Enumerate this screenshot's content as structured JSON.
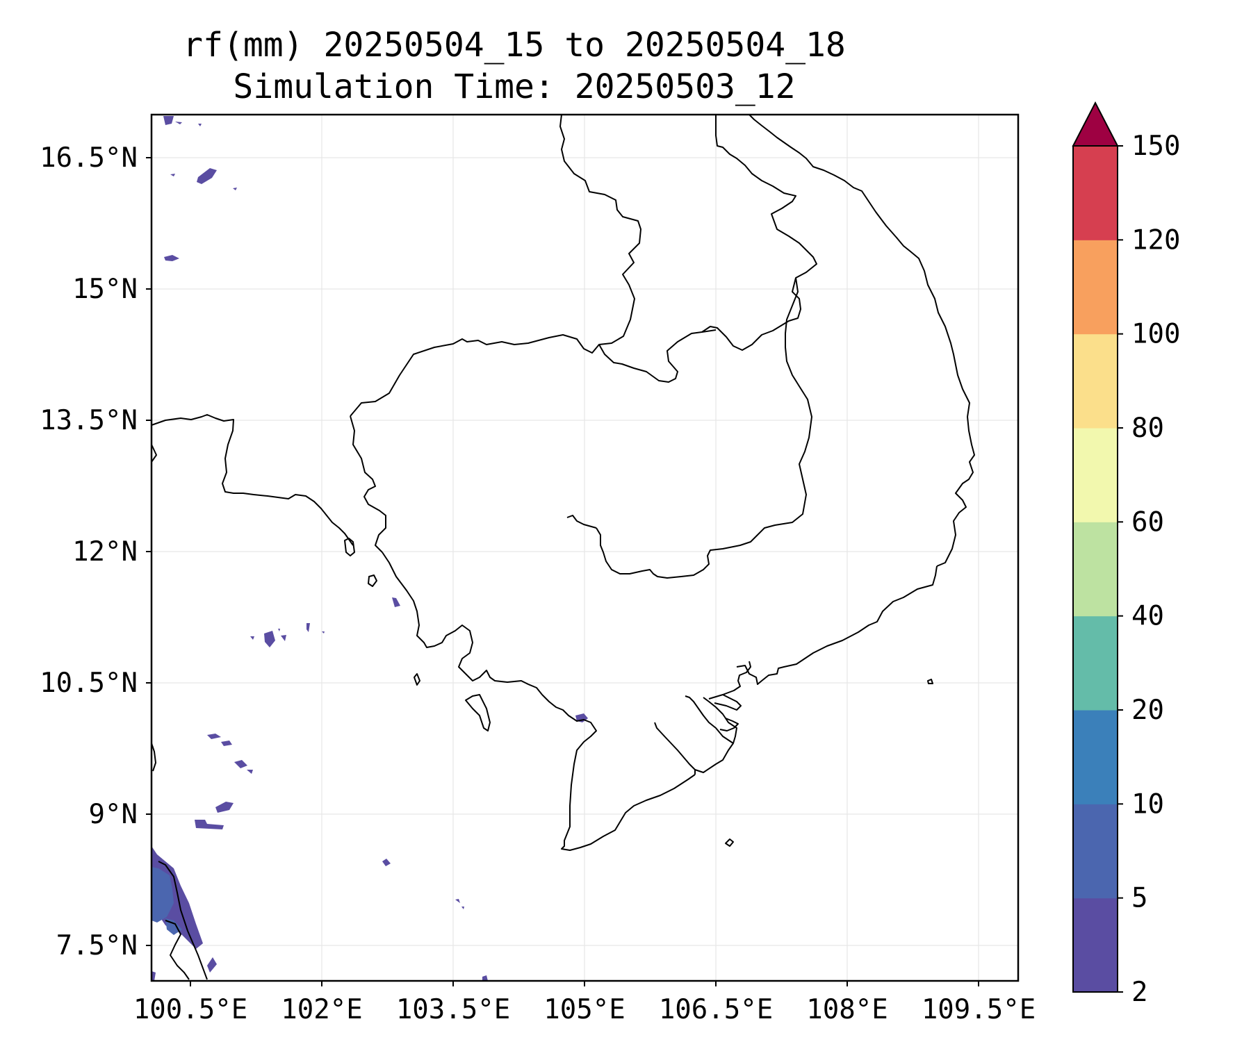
{
  "title": {
    "line1": "rf(mm) 20250504_15 to 20250504_18",
    "line2": "Simulation Time: 20250503_12"
  },
  "axes": {
    "lon_ticks": [
      "100.5°E",
      "102°E",
      "103.5°E",
      "105°E",
      "106.5°E",
      "108°E",
      "109.5°E"
    ],
    "lat_ticks": [
      "16.5°N",
      "15°N",
      "13.5°N",
      "12°N",
      "10.5°N",
      "9°N",
      "7.5°N"
    ]
  },
  "colorbar": {
    "levels": [
      "2",
      "5",
      "10",
      "20",
      "40",
      "60",
      "80",
      "100",
      "120",
      "150"
    ],
    "colors": [
      "#5a4da2",
      "#4b66af",
      "#3b80ba",
      "#64bca9",
      "#bde2a1",
      "#f2f8ae",
      "#fbdf8b",
      "#f8a05e",
      "#d63f50",
      "#9e0142"
    ],
    "extend": "max"
  },
  "map": {
    "extent_lon": [
      100.0,
      109.9
    ],
    "extent_lat": [
      7.0,
      16.9
    ],
    "gridlines": true,
    "rainfall_color": "#5a4da2",
    "coast_color": "#000000"
  }
}
